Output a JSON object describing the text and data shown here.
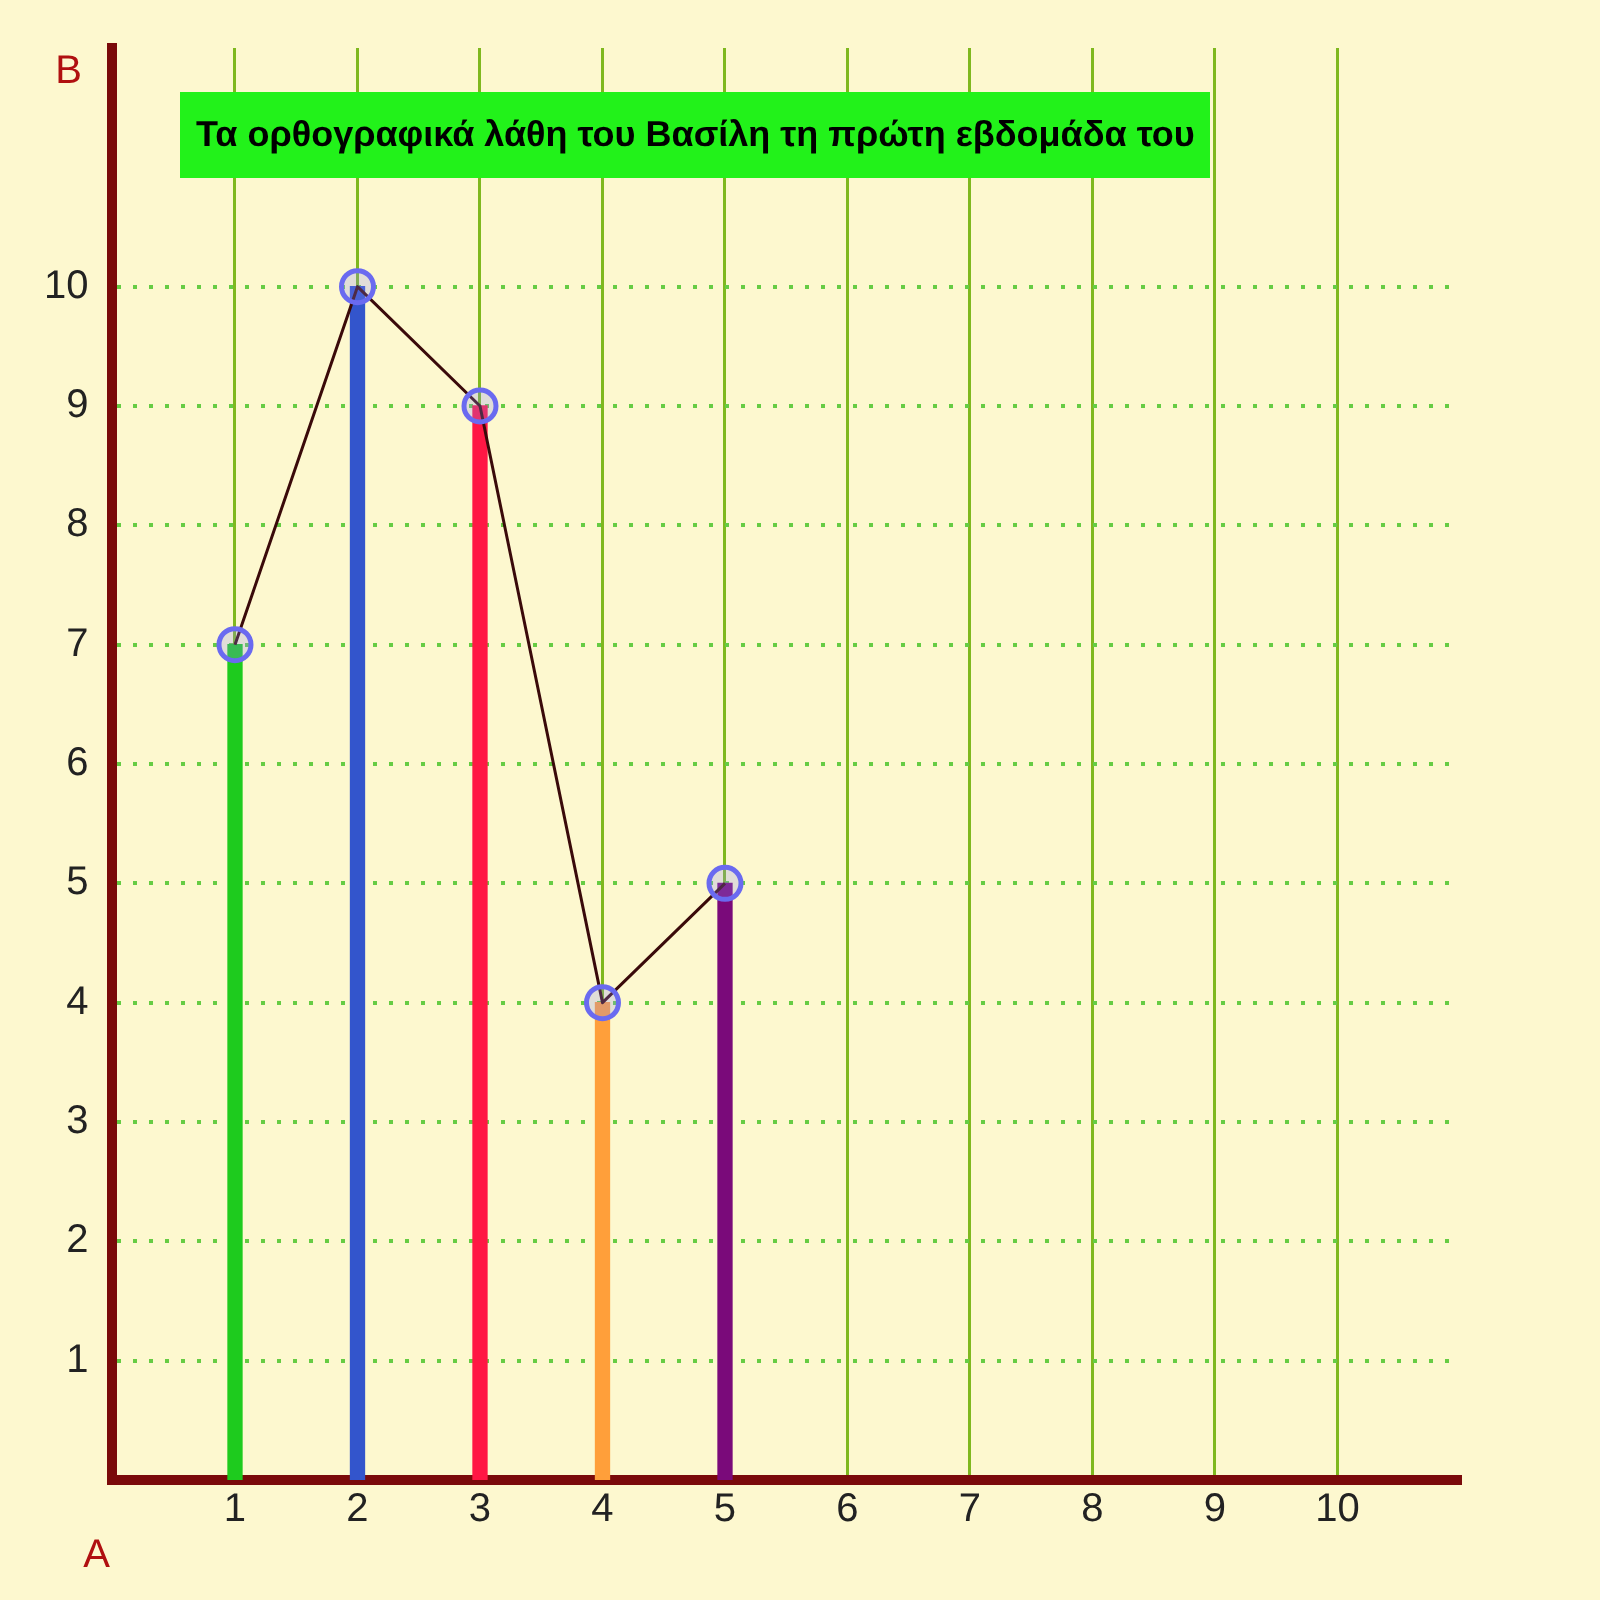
{
  "chart_data": {
    "type": "bar",
    "title": "Τα ορθογραφικά λάθη του Βασίλη τη πρώτη εβδομάδα  του",
    "x": [
      1,
      2,
      3,
      4,
      5
    ],
    "series": [
      {
        "colors": [
          "#1ecb1e",
          "#3355cc",
          "#ff1744",
          "#ff9f3a",
          "#7a0a7a"
        ],
        "values": [
          7,
          10,
          9,
          4,
          5
        ]
      },
      {
        "type": "line",
        "color": "#3a0a0a",
        "values": [
          7,
          10,
          9,
          4,
          5
        ]
      }
    ],
    "marker": "circle",
    "grid": true,
    "xlim": [
      0,
      11
    ],
    "xticks": [
      1,
      2,
      3,
      4,
      5,
      6,
      7,
      8,
      9,
      10
    ],
    "ylim": [
      0,
      12
    ],
    "yticks": [
      1,
      2,
      3,
      4,
      5,
      6,
      7,
      8,
      9,
      10
    ],
    "annotations": [
      "A",
      "B"
    ]
  }
}
